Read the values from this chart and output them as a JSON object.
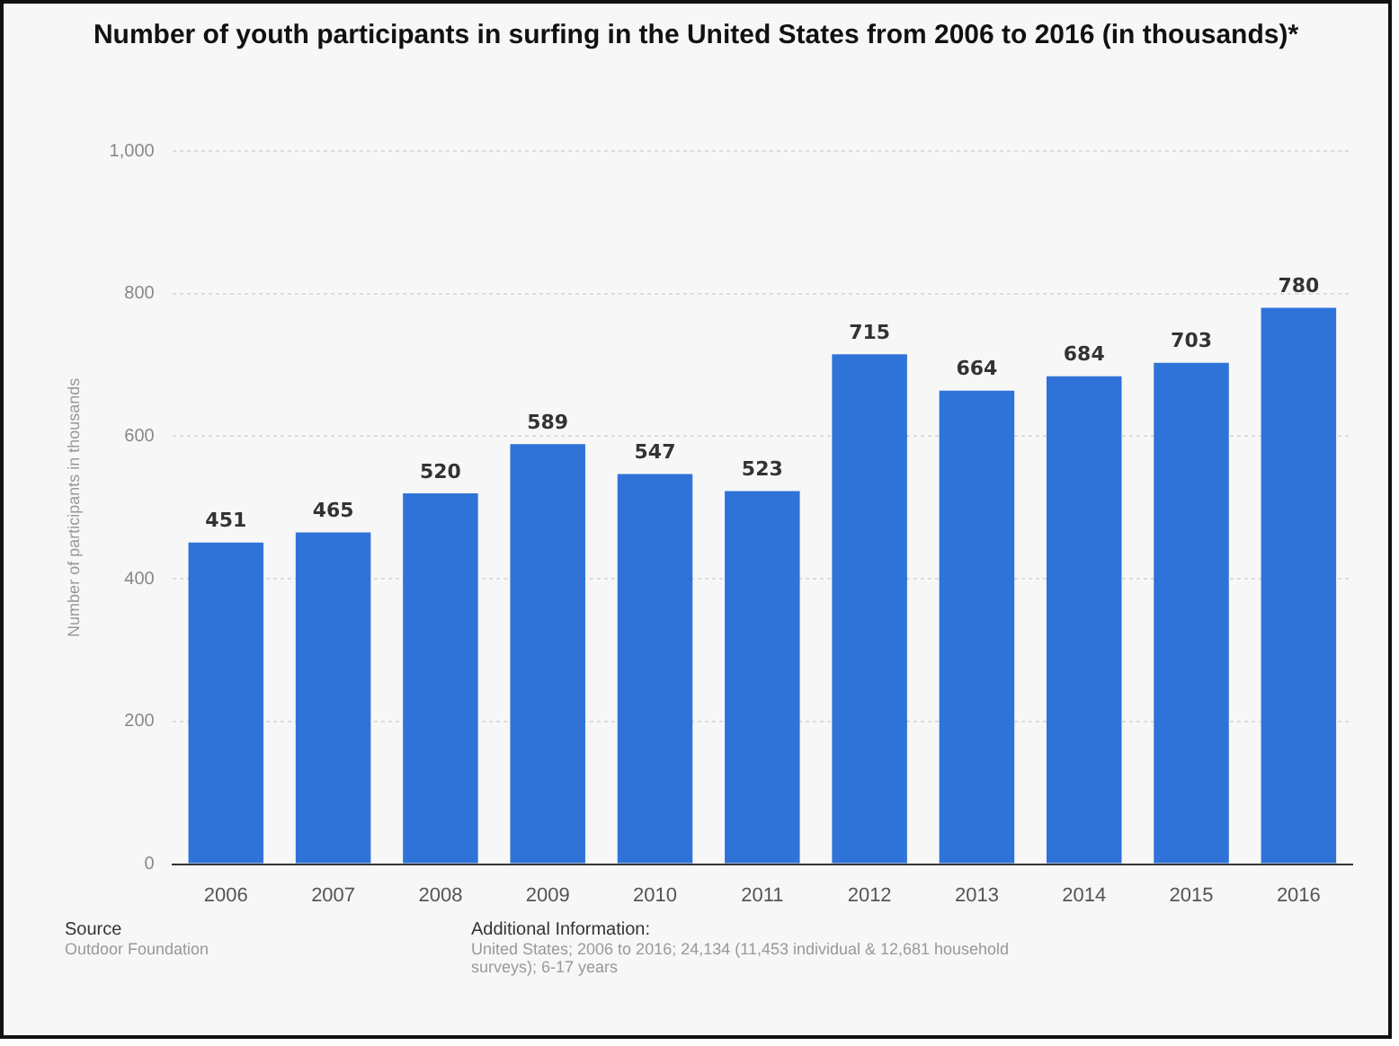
{
  "chart_data": {
    "type": "bar",
    "title": "Number of youth participants in surfing in the United States from 2006 to 2016 (in thousands)*",
    "ylabel": "Number of participants in thousands",
    "categories": [
      "2006",
      "2007",
      "2008",
      "2009",
      "2010",
      "2011",
      "2012",
      "2013",
      "2014",
      "2015",
      "2016"
    ],
    "values": [
      451,
      465,
      520,
      589,
      547,
      523,
      715,
      664,
      684,
      703,
      780
    ],
    "color": "#2f73d9",
    "ylim": [
      0,
      1000
    ],
    "yticks": [
      0,
      200,
      400,
      600,
      800,
      {
        "value": 1000,
        "label": "1,000"
      }
    ],
    "grid": "y",
    "data_labels": true,
    "annotations": [
      "Source",
      "Outdoor Foundation",
      "Additional Information:",
      "United States; 2006 to 2016; 24,134 (11,453 individual & 12,681 household surveys); 6-17 years"
    ]
  }
}
